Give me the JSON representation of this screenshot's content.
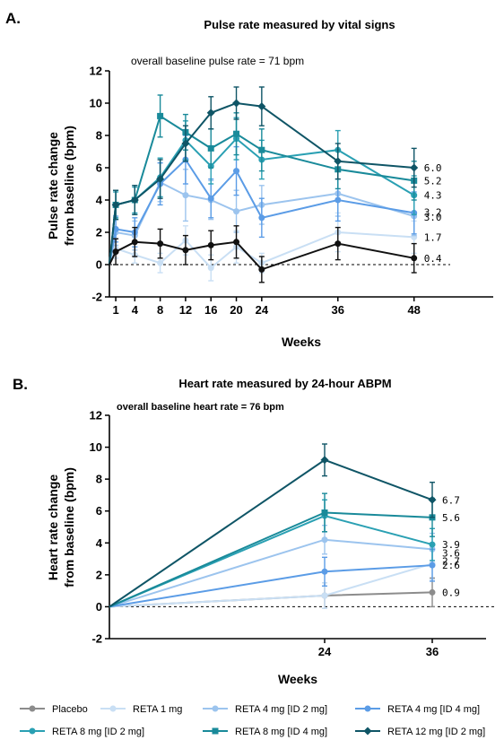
{
  "panels": [
    {
      "letter": "A.",
      "title": "Pulse rate measured by vital signs",
      "baseline_note": "overall baseline pulse rate = 71 bpm",
      "ylabel_line1": "Pulse rate change",
      "ylabel_line2": "from baseline (bpm)",
      "xlabel": "Weeks"
    },
    {
      "letter": "B.",
      "title": "Heart rate measured by 24-hour ABPM",
      "baseline_note": "overall baseline heart rate = 76 bpm",
      "ylabel_line1": "Heart rate change",
      "ylabel_line2": "from baseline (bpm)",
      "xlabel": "Weeks"
    }
  ],
  "legend": [
    {
      "name": "Placebo",
      "color": "#8c8c8c",
      "marker": "circle"
    },
    {
      "name": "RETA 1 mg",
      "color": "#c9dff4",
      "marker": "circle"
    },
    {
      "name": "RETA 4 mg [ID 2 mg]",
      "color": "#9cc4ee",
      "marker": "circle"
    },
    {
      "name": "RETA 4 mg [ID 4 mg]",
      "color": "#5b9ce6",
      "marker": "circle"
    },
    {
      "name": "RETA 8 mg [ID 2 mg]",
      "color": "#2aa0b3",
      "marker": "circle"
    },
    {
      "name": "RETA 8 mg [ID 4 mg]",
      "color": "#198a9a",
      "marker": "square"
    },
    {
      "name": "RETA 12 mg [ID 2 mg]",
      "color": "#0f5566",
      "marker": "diamond"
    }
  ],
  "chart_data": [
    {
      "type": "line",
      "title": "Pulse rate measured by vital signs",
      "xlabel": "Weeks",
      "ylabel": "Pulse rate change from baseline (bpm)",
      "xlim": [
        0,
        52
      ],
      "ylim": [
        -2,
        12
      ],
      "x_ticks": [
        1,
        4,
        8,
        12,
        16,
        20,
        24,
        36,
        48
      ],
      "y_ticks": [
        -2,
        0,
        2,
        4,
        6,
        8,
        10,
        12
      ],
      "reference_line_y": 0,
      "series": [
        {
          "name": "RETA 1 mg",
          "color": "#c9dff4",
          "marker": "circle",
          "x": [
            0,
            1,
            4,
            8,
            12,
            16,
            20,
            24,
            36,
            48
          ],
          "y": [
            0,
            1.0,
            0.6,
            0.1,
            1.5,
            -0.2,
            1.1,
            0.1,
            2.0,
            1.7
          ],
          "err": [
            0,
            0.6,
            0.5,
            0.6,
            0.9,
            0.8,
            1.0,
            0.6,
            1.2,
            1.0
          ],
          "end_label": "1.7"
        },
        {
          "name": "RETA 4 mg [ID 2 mg]",
          "color": "#9cc4ee",
          "marker": "circle",
          "x": [
            0,
            1,
            4,
            8,
            12,
            16,
            20,
            24,
            36,
            48
          ],
          "y": [
            0,
            2.0,
            1.8,
            5.1,
            4.3,
            4.0,
            3.3,
            3.7,
            4.4,
            3.0
          ],
          "err": [
            0,
            0.8,
            0.9,
            1.2,
            1.6,
            1.2,
            1.3,
            1.2,
            1.4,
            1.2
          ],
          "end_label": "3.0"
        },
        {
          "name": "RETA 4 mg [ID 4 mg]",
          "color": "#5b9ce6",
          "marker": "circle",
          "x": [
            0,
            1,
            4,
            8,
            12,
            16,
            20,
            24,
            36,
            48
          ],
          "y": [
            0,
            2.2,
            2.0,
            5.0,
            6.5,
            4.1,
            5.8,
            2.9,
            4.0,
            3.2
          ],
          "err": [
            0,
            0.8,
            0.9,
            1.3,
            1.5,
            1.2,
            1.5,
            1.2,
            1.3,
            1.3
          ],
          "end_label": "3.2"
        },
        {
          "name": "RETA 8 mg [ID 2 mg]",
          "color": "#2aa0b3",
          "marker": "circle",
          "x": [
            0,
            1,
            4,
            8,
            12,
            16,
            20,
            24,
            36,
            48
          ],
          "y": [
            0,
            3.7,
            4.0,
            5.4,
            7.7,
            6.1,
            7.8,
            6.5,
            7.1,
            4.3
          ],
          "err": [
            0,
            0.8,
            0.8,
            1.2,
            1.2,
            1.1,
            1.3,
            1.2,
            1.2,
            1.2
          ],
          "end_label": "4.3"
        },
        {
          "name": "RETA 8 mg [ID 4 mg]",
          "color": "#198a9a",
          "marker": "square",
          "x": [
            0,
            1,
            4,
            8,
            12,
            16,
            20,
            24,
            36,
            48
          ],
          "y": [
            0,
            3.7,
            4.0,
            9.2,
            8.2,
            7.2,
            8.1,
            7.1,
            5.9,
            5.2
          ],
          "err": [
            0,
            0.9,
            0.9,
            1.3,
            1.1,
            1.2,
            1.3,
            1.3,
            1.2,
            1.2
          ],
          "end_label": "5.2"
        },
        {
          "name": "RETA 12 mg [ID 2 mg]",
          "color": "#0f5566",
          "marker": "diamond",
          "x": [
            0,
            1,
            4,
            8,
            12,
            16,
            20,
            24,
            36,
            48
          ],
          "y": [
            0,
            3.7,
            4.0,
            5.3,
            7.5,
            9.4,
            10.0,
            9.8,
            6.4,
            6.0
          ],
          "err": [
            0,
            0.9,
            0.9,
            1.2,
            1.1,
            1.0,
            1.0,
            1.2,
            1.1,
            1.2
          ],
          "end_label": "6.0"
        },
        {
          "name": "Placebo",
          "color": "#111111",
          "marker": "circle",
          "x": [
            0,
            1,
            4,
            8,
            12,
            16,
            20,
            24,
            36,
            48
          ],
          "y": [
            0,
            0.8,
            1.4,
            1.3,
            0.9,
            1.2,
            1.4,
            -0.3,
            1.3,
            0.4
          ],
          "err": [
            0,
            0.8,
            0.9,
            0.9,
            0.9,
            0.9,
            1.0,
            0.8,
            1.0,
            0.9
          ],
          "end_label": "0.4"
        }
      ]
    },
    {
      "type": "line",
      "title": "Heart rate measured by 24-hour ABPM",
      "xlabel": "Weeks",
      "ylabel": "Heart rate change from baseline (bpm)",
      "xlim": [
        0,
        42
      ],
      "ylim": [
        -2,
        12
      ],
      "x_ticks": [
        24,
        36
      ],
      "y_ticks": [
        -2,
        0,
        2,
        4,
        6,
        8,
        10,
        12
      ],
      "reference_line_y": 0,
      "series": [
        {
          "name": "Placebo",
          "color": "#8c8c8c",
          "marker": "circle",
          "x": [
            0,
            24,
            36
          ],
          "y": [
            0,
            0.7,
            0.9
          ],
          "err": [
            0,
            0.8,
            0.9
          ],
          "end_label": "0.9"
        },
        {
          "name": "RETA 1 mg",
          "color": "#c9dff4",
          "marker": "circle",
          "x": [
            0,
            24,
            36
          ],
          "y": [
            0,
            0.7,
            2.7
          ],
          "err": [
            0,
            0.8,
            1.0
          ],
          "end_label": "2.7"
        },
        {
          "name": "RETA 4 mg [ID 2 mg]",
          "color": "#9cc4ee",
          "marker": "circle",
          "x": [
            0,
            24,
            36
          ],
          "y": [
            0,
            4.2,
            3.6
          ],
          "err": [
            0,
            0.9,
            1.0
          ],
          "end_label": "3.6"
        },
        {
          "name": "RETA 4 mg [ID 4 mg]",
          "color": "#5b9ce6",
          "marker": "circle",
          "x": [
            0,
            24,
            36
          ],
          "y": [
            0,
            2.2,
            2.6
          ],
          "err": [
            0,
            0.9,
            1.0
          ],
          "end_label": "2.6"
        },
        {
          "name": "RETA 8 mg [ID 2 mg]",
          "color": "#2aa0b3",
          "marker": "circle",
          "x": [
            0,
            24,
            36
          ],
          "y": [
            0,
            5.7,
            3.9
          ],
          "err": [
            0,
            1.0,
            1.0
          ],
          "end_label": "3.9"
        },
        {
          "name": "RETA 8 mg [ID 4 mg]",
          "color": "#198a9a",
          "marker": "square",
          "x": [
            0,
            24,
            36
          ],
          "y": [
            0,
            5.9,
            5.6
          ],
          "err": [
            0,
            1.2,
            1.2
          ],
          "end_label": "5.6"
        },
        {
          "name": "RETA 12 mg [ID 2 mg]",
          "color": "#0f5566",
          "marker": "diamond",
          "x": [
            0,
            24,
            36
          ],
          "y": [
            0,
            9.2,
            6.7
          ],
          "err": [
            0,
            1.0,
            1.1
          ],
          "end_label": "6.7"
        }
      ]
    }
  ]
}
